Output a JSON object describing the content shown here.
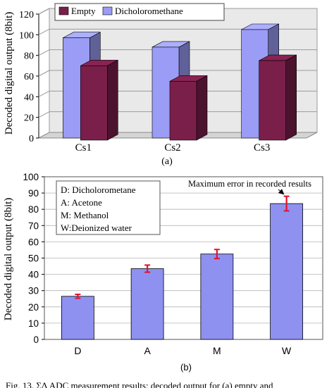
{
  "caption": "Fig. 13.  ΣΔ ADC measurement results: decoded output for (a) empty and",
  "chart_data": [
    {
      "type": "bar",
      "panel_label": "(a)",
      "categories": [
        "Cs1",
        "Cs2",
        "Cs3"
      ],
      "series": [
        {
          "name": "Empty",
          "values": [
            72,
            57,
            77
          ],
          "color": "#7a1f4a"
        },
        {
          "name": "Dicholoromethane",
          "values": [
            97,
            88,
            105
          ],
          "color": "#9a9cf5"
        }
      ],
      "ylabel": "Decoded digital output (8bit)",
      "ylim": [
        0,
        120
      ],
      "yticks": [
        0,
        20,
        40,
        60,
        80,
        100,
        120
      ],
      "grid": true,
      "legend": "top-left",
      "style": "3d"
    },
    {
      "type": "bar",
      "panel_label": "(b)",
      "categories": [
        "D",
        "A",
        "M",
        "W"
      ],
      "values": [
        26.5,
        43.5,
        52.5,
        83.5
      ],
      "errors": [
        1.2,
        2.2,
        2.8,
        4.5
      ],
      "color": "#8f91f0",
      "ylabel": "Decoded digital output (8bit)",
      "ylim": [
        0,
        100
      ],
      "yticks": [
        0,
        10,
        20,
        30,
        40,
        50,
        60,
        70,
        80,
        90,
        100
      ],
      "grid": true,
      "legend_entries": [
        "D: Dicholorometane",
        "A: Acetone",
        "M: Methanol",
        "W:Deionized water"
      ],
      "annotation": "Maximum error in recorded results"
    }
  ]
}
